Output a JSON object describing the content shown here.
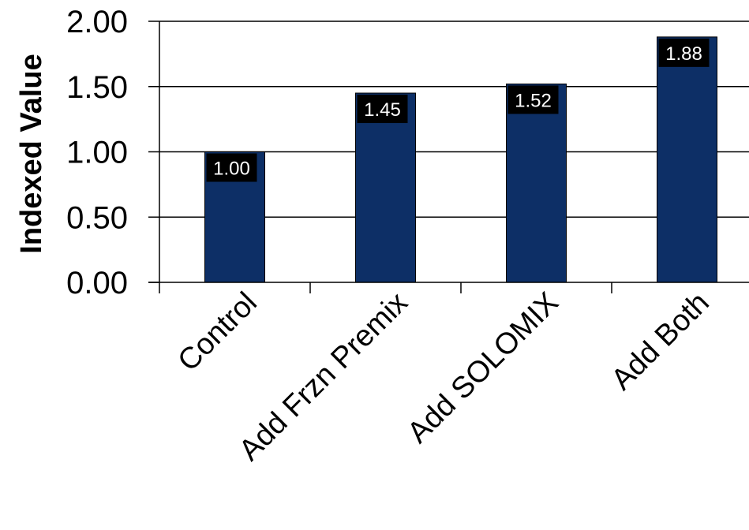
{
  "chart_data": {
    "type": "bar",
    "title": "",
    "xlabel": "",
    "ylabel": "Indexed Value",
    "categories": [
      "Control",
      "Add Frzn Premix",
      "Add SOLOMIX",
      "Add Both"
    ],
    "values": [
      1.0,
      1.45,
      1.52,
      1.88
    ],
    "data_labels": [
      "1.00",
      "1.45",
      "1.52",
      "1.88"
    ],
    "y_ticks": [
      "0.00",
      "0.50",
      "1.00",
      "1.50",
      "2.00"
    ],
    "y_tick_values": [
      0,
      0.5,
      1.0,
      1.5,
      2.0
    ],
    "ylim": [
      0,
      2.0
    ],
    "grid": "horizontal",
    "legend": "none",
    "bar_color": "#0d2f66",
    "label_box_color": "#000000"
  }
}
